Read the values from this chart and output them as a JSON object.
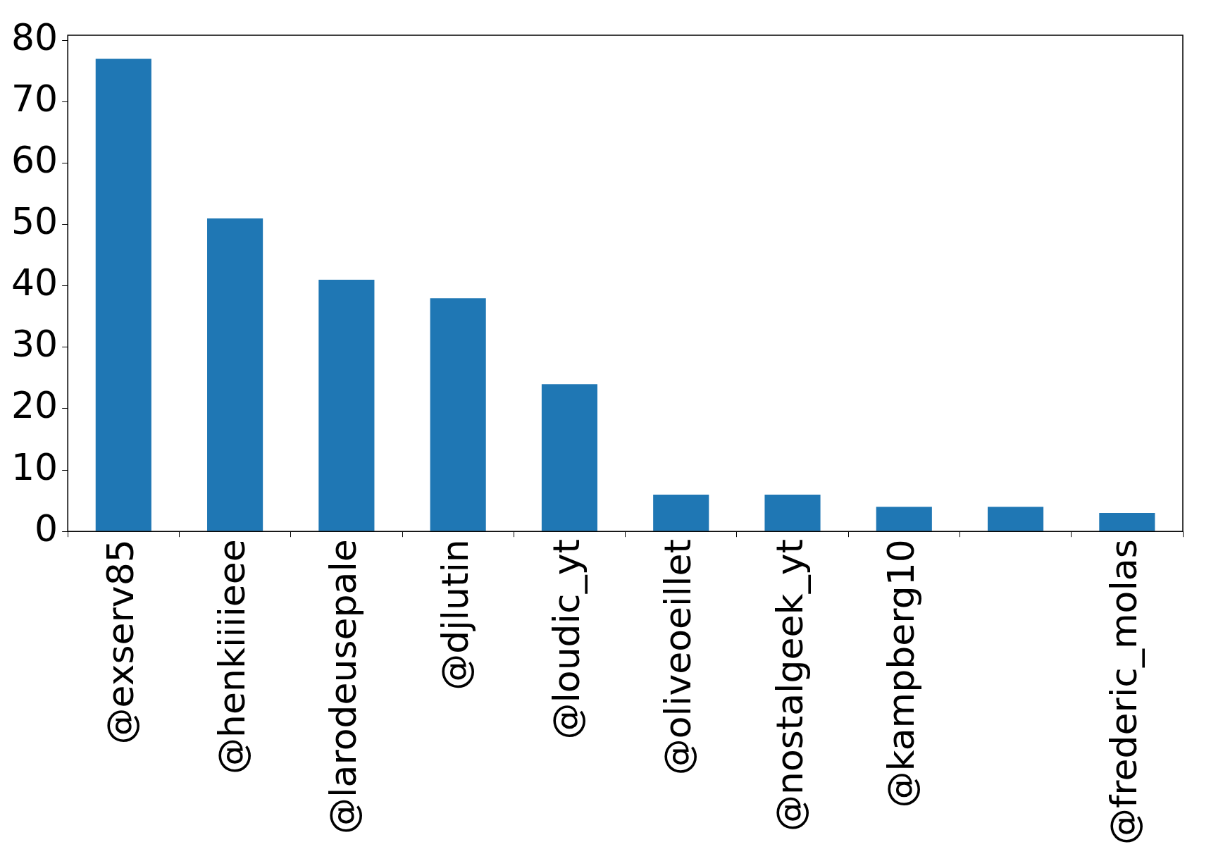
{
  "chart_data": {
    "type": "bar",
    "categories": [
      "@exserv85",
      "@henkiiiieee",
      "@larodeusepale",
      "@djlutin",
      "@loudic_yt",
      "@oliveoeillet",
      "@nostalgeek_yt",
      "@kampberg10",
      null,
      "@frederic_molas"
    ],
    "values": [
      77,
      51,
      41,
      38,
      24,
      6,
      6,
      4,
      4,
      3
    ],
    "color": "#1f77b4",
    "ylim": [
      0,
      80.85
    ],
    "yticks": [
      0,
      10,
      20,
      30,
      40,
      50,
      60,
      70,
      80
    ],
    "grid": false,
    "legend": false
  }
}
